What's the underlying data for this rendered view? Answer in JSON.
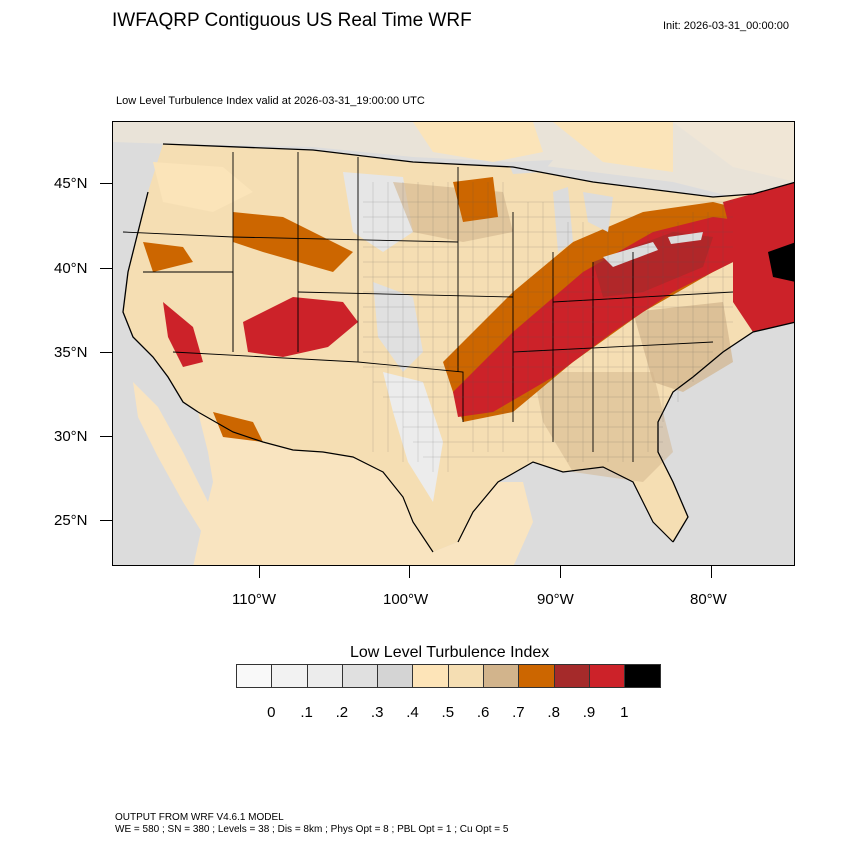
{
  "header": {
    "title": "IWFAQRP Contiguous US Real Time WRF",
    "init": "Init: 2026-03-31_00:00:00",
    "subtitle": "Low Level Turbulence Index valid at 2026-03-31_19:00:00 UTC"
  },
  "map": {
    "lat_labels": [
      "45°N",
      "40°N",
      "35°N",
      "30°N",
      "25°N"
    ],
    "lon_labels": [
      "110°W",
      "100°W",
      "90°W",
      "80°W"
    ],
    "colors": {
      "ocean": "#dcdcdc",
      "land_base": "#f5deb3",
      "light": "#fbe4b9",
      "tan": "#d2b48c",
      "orange": "#cc6600",
      "dark_red": "#a52a2a",
      "red": "#cc2229",
      "black": "#000000",
      "gray_light": "#e6e6e6"
    }
  },
  "colorbar": {
    "title": "Low Level Turbulence Index",
    "colors": [
      "#f9f9f9",
      "#f2f2f2",
      "#ececec",
      "#e0e0e0",
      "#d4d4d4",
      "#fde4b8",
      "#f5deb3",
      "#d2b48c",
      "#cc6600",
      "#a52a2a",
      "#cc2229",
      "#000000"
    ],
    "labels": [
      "0",
      ".1",
      ".2",
      ".3",
      ".4",
      ".5",
      ".6",
      ".7",
      ".8",
      ".9",
      "1"
    ]
  },
  "footer": {
    "line1": "OUTPUT FROM WRF V4.6.1 MODEL",
    "line2": "WE = 580 ; SN = 380 ; Levels = 38 ; Dis = 8km ; Phys Opt = 8 ; PBL Opt = 1 ; Cu Opt = 5"
  }
}
